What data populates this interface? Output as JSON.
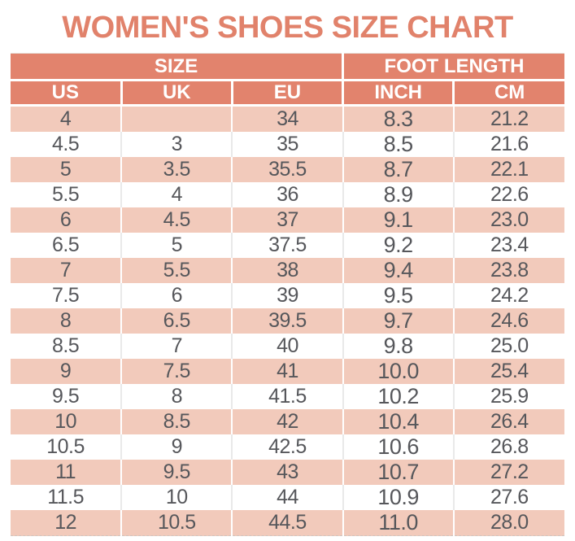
{
  "title": "WOMEN'S SHOES SIZE CHART",
  "chart_data": {
    "type": "table",
    "group_headers": [
      {
        "label": "SIZE",
        "span": 3
      },
      {
        "label": "FOOT LENGTH",
        "span": 2
      }
    ],
    "columns": [
      "US",
      "UK",
      "EU",
      "INCH",
      "CM"
    ],
    "rows": [
      [
        "4",
        "",
        "34",
        "8.3",
        "21.2"
      ],
      [
        "4.5",
        "3",
        "35",
        "8.5",
        "21.6"
      ],
      [
        "5",
        "3.5",
        "35.5",
        "8.7",
        "22.1"
      ],
      [
        "5.5",
        "4",
        "36",
        "8.9",
        "22.6"
      ],
      [
        "6",
        "4.5",
        "37",
        "9.1",
        "23.0"
      ],
      [
        "6.5",
        "5",
        "37.5",
        "9.2",
        "23.4"
      ],
      [
        "7",
        "5.5",
        "38",
        "9.4",
        "23.8"
      ],
      [
        "7.5",
        "6",
        "39",
        "9.5",
        "24.2"
      ],
      [
        "8",
        "6.5",
        "39.5",
        "9.7",
        "24.6"
      ],
      [
        "8.5",
        "7",
        "40",
        "9.8",
        "25.0"
      ],
      [
        "9",
        "7.5",
        "41",
        "10.0",
        "25.4"
      ],
      [
        "9.5",
        "8",
        "41.5",
        "10.2",
        "25.9"
      ],
      [
        "10",
        "8.5",
        "42",
        "10.4",
        "26.4"
      ],
      [
        "10.5",
        "9",
        "42.5",
        "10.6",
        "26.8"
      ],
      [
        "11",
        "9.5",
        "43",
        "10.7",
        "27.2"
      ],
      [
        "11.5",
        "10",
        "44",
        "10.9",
        "27.6"
      ],
      [
        "12",
        "10.5",
        "44.5",
        "11.0",
        "28.0"
      ]
    ]
  },
  "colors": {
    "accent": "#e1826b",
    "header_bg": "#e2836d",
    "row_alt": "#f2cabb",
    "text": "#56575b"
  }
}
